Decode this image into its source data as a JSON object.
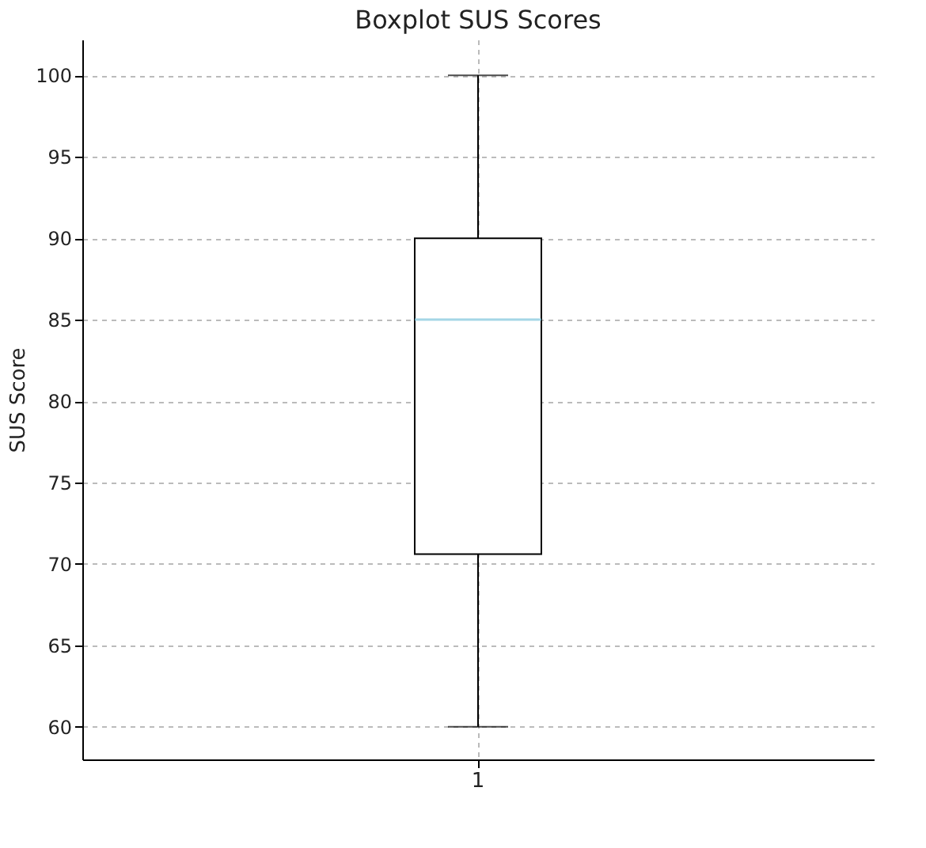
{
  "chart_data": {
    "type": "box",
    "title": "Boxplot SUS Scores",
    "ylabel": "SUS Score",
    "categories": [
      "1"
    ],
    "boxes": [
      {
        "low": 60,
        "q1": 70.6,
        "median": 85,
        "q3": 90,
        "high": 100
      }
    ],
    "ylim": [
      58,
      102.2
    ],
    "yticks": [
      60,
      65,
      70,
      75,
      80,
      85,
      90,
      95,
      100
    ],
    "grid": true
  }
}
